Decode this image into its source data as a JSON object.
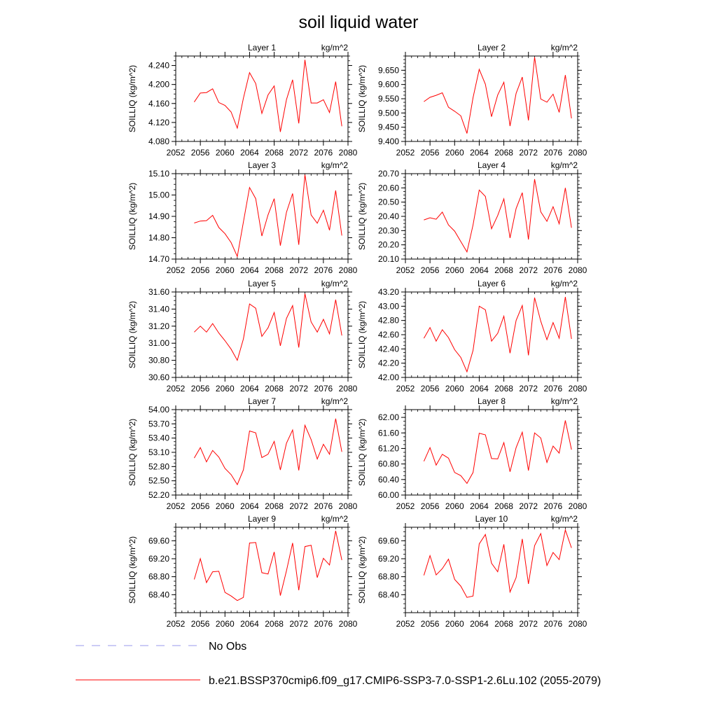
{
  "title": "soil liquid water",
  "units": "kg/m^2",
  "ylabel": "SOILLIQ  (kg/m^2)",
  "x_ticks": [
    2052,
    2056,
    2060,
    2064,
    2068,
    2072,
    2076,
    2080
  ],
  "legend": [
    {
      "label": "No Obs",
      "style": "dashed",
      "color": "#9999ee"
    },
    {
      "label": "b.e21.BSSP370cmip6.f09_g17.CMIP6-SSP3-7.0-SSP1-2.6Lu.102 (2055-2079)",
      "style": "solid",
      "color": "#ff0000"
    }
  ],
  "chart_data": [
    {
      "type": "line",
      "title": "Layer 1",
      "xlim": [
        2052,
        2080
      ],
      "ylim": [
        4.08,
        4.26
      ],
      "y_ticks": [
        4.08,
        4.12,
        4.16,
        4.2,
        4.24
      ],
      "y_decimals": 3,
      "series": [
        {
          "name": "b.e21.BSSP370cmip6.f09_g17.CMIP6-SSP3-7.0-SSP1-2.6Lu.102 (2055-2079)",
          "color": "#ff0000",
          "x": [
            2055,
            2056,
            2057,
            2058,
            2059,
            2060,
            2061,
            2062,
            2063,
            2064,
            2065,
            2066,
            2067,
            2068,
            2069,
            2070,
            2071,
            2072,
            2073,
            2074,
            2075,
            2076,
            2077,
            2078,
            2079
          ],
          "y": [
            4.163,
            4.182,
            4.183,
            4.191,
            4.162,
            4.156,
            4.142,
            4.108,
            4.171,
            4.225,
            4.202,
            4.139,
            4.178,
            4.197,
            4.1,
            4.168,
            4.21,
            4.118,
            4.252,
            4.161,
            4.161,
            4.168,
            4.141,
            4.206,
            4.112
          ]
        }
      ]
    },
    {
      "type": "line",
      "title": "Layer 2",
      "xlim": [
        2052,
        2080
      ],
      "ylim": [
        9.4,
        9.7
      ],
      "y_ticks": [
        9.4,
        9.45,
        9.5,
        9.55,
        9.6,
        9.65
      ],
      "y_decimals": 3,
      "series": [
        {
          "name": "b.e21.BSSP370cmip6.f09_g17.CMIP6-SSP3-7.0-SSP1-2.6Lu.102 (2055-2079)",
          "color": "#ff0000",
          "x": [
            2055,
            2056,
            2057,
            2058,
            2059,
            2060,
            2061,
            2062,
            2063,
            2064,
            2065,
            2066,
            2067,
            2068,
            2069,
            2070,
            2071,
            2072,
            2073,
            2074,
            2075,
            2076,
            2077,
            2078,
            2079
          ],
          "y": [
            9.54,
            9.555,
            9.562,
            9.571,
            9.52,
            9.506,
            9.49,
            9.428,
            9.554,
            9.653,
            9.601,
            9.487,
            9.563,
            9.608,
            9.454,
            9.569,
            9.626,
            9.474,
            9.696,
            9.549,
            9.538,
            9.566,
            9.502,
            9.633,
            9.481
          ]
        }
      ]
    },
    {
      "type": "line",
      "title": "Layer 3",
      "xlim": [
        2052,
        2080
      ],
      "ylim": [
        14.7,
        15.1
      ],
      "y_ticks": [
        14.7,
        14.8,
        14.9,
        15.0,
        15.1
      ],
      "y_decimals": 2,
      "series": [
        {
          "name": "b.e21.BSSP370cmip6.f09_g17.CMIP6-SSP3-7.0-SSP1-2.6Lu.102 (2055-2079)",
          "color": "#ff0000",
          "x": [
            2055,
            2056,
            2057,
            2058,
            2059,
            2060,
            2061,
            2062,
            2063,
            2064,
            2065,
            2066,
            2067,
            2068,
            2069,
            2070,
            2071,
            2072,
            2073,
            2074,
            2075,
            2076,
            2077,
            2078,
            2079
          ],
          "y": [
            14.869,
            14.878,
            14.88,
            14.905,
            14.848,
            14.819,
            14.777,
            14.712,
            14.873,
            15.035,
            14.983,
            14.808,
            14.907,
            14.983,
            14.763,
            14.919,
            15.007,
            14.767,
            15.095,
            14.907,
            14.868,
            14.929,
            14.835,
            15.021,
            14.81
          ]
        }
      ]
    },
    {
      "type": "line",
      "title": "Layer 4",
      "xlim": [
        2052,
        2080
      ],
      "ylim": [
        20.1,
        20.7
      ],
      "y_ticks": [
        20.1,
        20.2,
        20.3,
        20.4,
        20.5,
        20.6,
        20.7
      ],
      "y_decimals": 2,
      "series": [
        {
          "name": "b.e21.BSSP370cmip6.f09_g17.CMIP6-SSP3-7.0-SSP1-2.6Lu.102 (2055-2079)",
          "color": "#ff0000",
          "x": [
            2055,
            2056,
            2057,
            2058,
            2059,
            2060,
            2061,
            2062,
            2063,
            2064,
            2065,
            2066,
            2067,
            2068,
            2069,
            2070,
            2071,
            2072,
            2073,
            2074,
            2075,
            2076,
            2077,
            2078,
            2079
          ],
          "y": [
            20.375,
            20.39,
            20.38,
            20.43,
            20.34,
            20.296,
            20.223,
            20.15,
            20.34,
            20.585,
            20.54,
            20.313,
            20.406,
            20.523,
            20.248,
            20.455,
            20.566,
            20.237,
            20.661,
            20.432,
            20.365,
            20.468,
            20.348,
            20.6,
            20.32
          ]
        }
      ]
    },
    {
      "type": "line",
      "title": "Layer 5",
      "xlim": [
        2052,
        2080
      ],
      "ylim": [
        30.6,
        31.6
      ],
      "y_ticks": [
        30.6,
        30.8,
        31.0,
        31.2,
        31.4,
        31.6
      ],
      "y_decimals": 2,
      "series": [
        {
          "name": "b.e21.BSSP370cmip6.f09_g17.CMIP6-SSP3-7.0-SSP1-2.6Lu.102 (2055-2079)",
          "color": "#ff0000",
          "x": [
            2055,
            2056,
            2057,
            2058,
            2059,
            2060,
            2061,
            2062,
            2063,
            2064,
            2065,
            2066,
            2067,
            2068,
            2069,
            2070,
            2071,
            2072,
            2073,
            2074,
            2075,
            2076,
            2077,
            2078,
            2079
          ],
          "y": [
            31.13,
            31.2,
            31.13,
            31.23,
            31.12,
            31.03,
            30.93,
            30.8,
            31.05,
            31.46,
            31.41,
            31.08,
            31.18,
            31.36,
            30.97,
            31.29,
            31.44,
            30.95,
            31.58,
            31.25,
            31.13,
            31.28,
            31.11,
            31.51,
            31.09
          ]
        }
      ]
    },
    {
      "type": "line",
      "title": "Layer 6",
      "xlim": [
        2052,
        2080
      ],
      "ylim": [
        42.0,
        43.2
      ],
      "y_ticks": [
        42.0,
        42.2,
        42.4,
        42.6,
        42.8,
        43.0,
        43.2
      ],
      "y_decimals": 2,
      "series": [
        {
          "name": "b.e21.BSSP370cmip6.f09_g17.CMIP6-SSP3-7.0-SSP1-2.6Lu.102 (2055-2079)",
          "color": "#ff0000",
          "x": [
            2055,
            2056,
            2057,
            2058,
            2059,
            2060,
            2061,
            2062,
            2063,
            2064,
            2065,
            2066,
            2067,
            2068,
            2069,
            2070,
            2071,
            2072,
            2073,
            2074,
            2075,
            2076,
            2077,
            2078,
            2079
          ],
          "y": [
            42.55,
            42.7,
            42.51,
            42.67,
            42.56,
            42.39,
            42.28,
            42.08,
            42.38,
            43.0,
            42.95,
            42.51,
            42.62,
            42.86,
            42.34,
            42.8,
            43.01,
            42.31,
            43.12,
            42.79,
            42.53,
            42.77,
            42.55,
            43.13,
            42.54
          ]
        }
      ]
    },
    {
      "type": "line",
      "title": "Layer 7",
      "xlim": [
        2052,
        2080
      ],
      "ylim": [
        52.2,
        54.0
      ],
      "y_ticks": [
        52.2,
        52.5,
        52.8,
        53.1,
        53.4,
        53.7,
        54.0
      ],
      "y_decimals": 2,
      "series": [
        {
          "name": "b.e21.BSSP370cmip6.f09_g17.CMIP6-SSP3-7.0-SSP1-2.6Lu.102 (2055-2079)",
          "color": "#ff0000",
          "x": [
            2055,
            2056,
            2057,
            2058,
            2059,
            2060,
            2061,
            2062,
            2063,
            2064,
            2065,
            2066,
            2067,
            2068,
            2069,
            2070,
            2071,
            2072,
            2073,
            2074,
            2075,
            2076,
            2077,
            2078,
            2079
          ],
          "y": [
            52.98,
            53.2,
            52.9,
            53.14,
            53.0,
            52.76,
            52.63,
            52.42,
            52.73,
            53.55,
            53.51,
            52.99,
            53.06,
            53.33,
            52.73,
            53.29,
            53.57,
            52.72,
            53.67,
            53.37,
            52.96,
            53.27,
            53.06,
            53.81,
            53.11
          ]
        }
      ]
    },
    {
      "type": "line",
      "title": "Layer 8",
      "xlim": [
        2052,
        2080
      ],
      "ylim": [
        60.0,
        62.2
      ],
      "y_ticks": [
        60.0,
        60.4,
        60.8,
        61.2,
        61.6,
        62.0
      ],
      "y_decimals": 2,
      "series": [
        {
          "name": "b.e21.BSSP370cmip6.f09_g17.CMIP6-SSP3-7.0-SSP1-2.6Lu.102 (2055-2079)",
          "color": "#ff0000",
          "x": [
            2055,
            2056,
            2057,
            2058,
            2059,
            2060,
            2061,
            2062,
            2063,
            2064,
            2065,
            2066,
            2067,
            2068,
            2069,
            2070,
            2071,
            2072,
            2073,
            2074,
            2075,
            2076,
            2077,
            2078,
            2079
          ],
          "y": [
            60.87,
            61.22,
            60.77,
            61.05,
            60.95,
            60.58,
            60.5,
            60.3,
            60.58,
            61.59,
            61.55,
            60.94,
            60.93,
            61.35,
            60.6,
            61.22,
            61.62,
            60.63,
            61.6,
            61.47,
            60.84,
            61.26,
            61.08,
            61.92,
            61.17
          ]
        }
      ]
    },
    {
      "type": "line",
      "title": "Layer 9",
      "xlim": [
        2052,
        2080
      ],
      "ylim": [
        68.0,
        69.9
      ],
      "y_ticks": [
        68.4,
        68.8,
        69.2,
        69.6
      ],
      "y_decimals": 2,
      "series": [
        {
          "name": "b.e21.BSSP370cmip6.f09_g17.CMIP6-SSP3-7.0-SSP1-2.6Lu.102 (2055-2079)",
          "color": "#ff0000",
          "x": [
            2055,
            2056,
            2057,
            2058,
            2059,
            2060,
            2061,
            2062,
            2063,
            2064,
            2065,
            2066,
            2067,
            2068,
            2069,
            2070,
            2071,
            2072,
            2073,
            2074,
            2075,
            2076,
            2077,
            2078,
            2079
          ],
          "y": [
            68.74,
            69.2,
            68.67,
            68.91,
            68.92,
            68.45,
            68.37,
            68.27,
            68.34,
            69.55,
            69.56,
            68.89,
            68.86,
            69.35,
            68.38,
            68.93,
            69.55,
            68.5,
            69.47,
            69.5,
            68.78,
            69.21,
            69.06,
            69.82,
            69.17
          ]
        }
      ]
    },
    {
      "type": "line",
      "title": "Layer 10",
      "xlim": [
        2052,
        2080
      ],
      "ylim": [
        68.0,
        69.9
      ],
      "y_ticks": [
        68.4,
        68.8,
        69.2,
        69.6
      ],
      "y_decimals": 2,
      "series": [
        {
          "name": "b.e21.BSSP370cmip6.f09_g17.CMIP6-SSP3-7.0-SSP1-2.6Lu.102 (2055-2079)",
          "color": "#ff0000",
          "x": [
            2055,
            2056,
            2057,
            2058,
            2059,
            2060,
            2061,
            2062,
            2063,
            2064,
            2065,
            2066,
            2067,
            2068,
            2069,
            2070,
            2071,
            2072,
            2073,
            2074,
            2075,
            2076,
            2077,
            2078,
            2079
          ],
          "y": [
            68.83,
            69.27,
            68.84,
            68.98,
            69.19,
            68.74,
            68.59,
            68.34,
            68.37,
            69.53,
            69.74,
            69.1,
            68.91,
            69.52,
            68.46,
            68.78,
            69.64,
            68.64,
            69.49,
            69.76,
            69.05,
            69.34,
            69.18,
            69.84,
            69.44
          ]
        }
      ]
    }
  ]
}
